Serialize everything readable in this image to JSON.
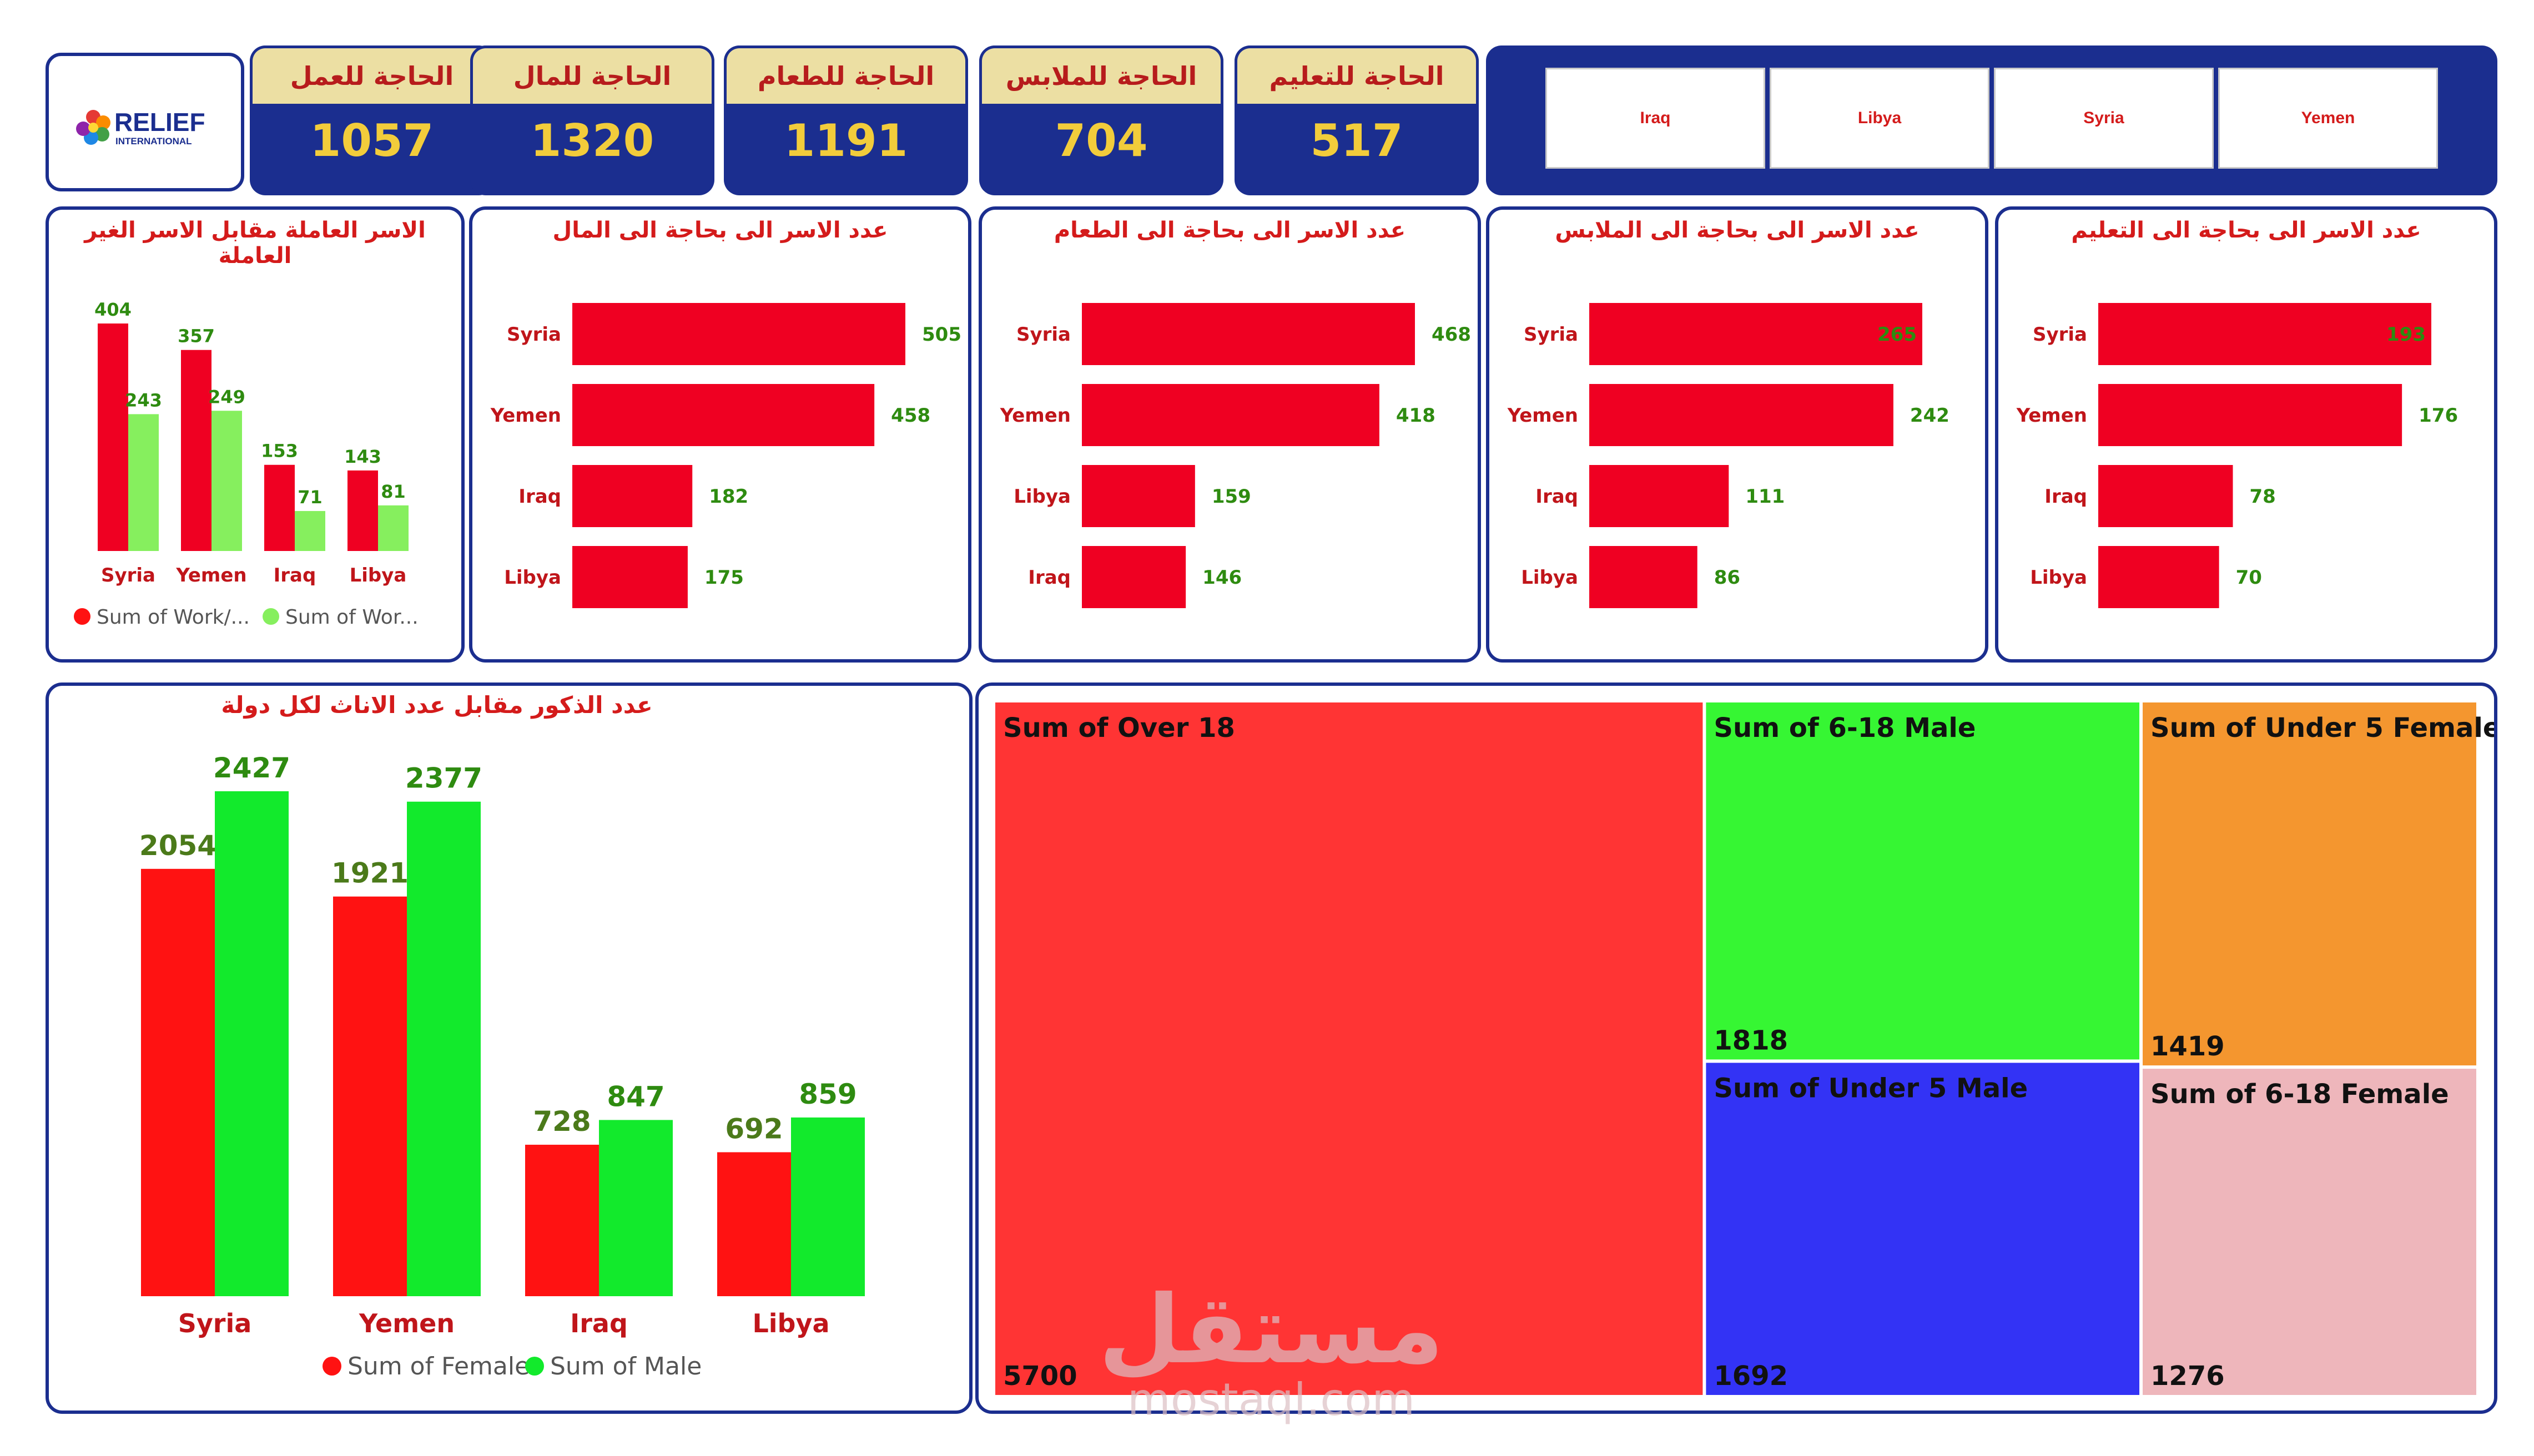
{
  "logo": {
    "name": "RELIEF",
    "sub": "INTERNATIONAL"
  },
  "kpis": [
    {
      "label": "الحاجة للعمل",
      "value": "1057"
    },
    {
      "label": "الحاجة للمال",
      "value": "1320"
    },
    {
      "label": "الحاجة للطعام",
      "value": "1191"
    },
    {
      "label": "الحاجة للملابس",
      "value": "704"
    },
    {
      "label": "الحاجة للتعليم",
      "value": "517"
    }
  ],
  "slicer": {
    "options": [
      "Iraq",
      "Libya",
      "Syria",
      "Yemen"
    ]
  },
  "panels": {
    "work": {
      "title": "الاسر العاملة مقابل الاسر الغير العاملة"
    },
    "money": {
      "title": "عدد الاسر الى بحاجة الى المال"
    },
    "food": {
      "title": "عدد الاسر الى بحاجة الى الطعام"
    },
    "clothes": {
      "title": "عدد الاسر الى بحاجة الى الملابس"
    },
    "education": {
      "title": "عدد الاسر الى بحاجة الى التعليم"
    },
    "gender": {
      "title": "عدد الذكور مقابل عدد الاناث لكل دولة"
    }
  },
  "watermark": {
    "arabic": "مستقل",
    "latin": "mostaql.com"
  },
  "colors": {
    "navy": "#1b2e8f",
    "red": "#ef0022",
    "bright_red": "#ff1212",
    "light_green": "#86ef5e",
    "green": "#12ea2c",
    "label_green": "#2e8b10",
    "kpi_gold": "#f2cc3b",
    "kpi_head": "#ecdfa3"
  },
  "chart_data": [
    {
      "id": "work",
      "type": "bar",
      "categories": [
        "Syria",
        "Yemen",
        "Iraq",
        "Libya"
      ],
      "series": [
        {
          "name": "Sum of Work/...",
          "values": [
            404,
            357,
            153,
            143
          ]
        },
        {
          "name": "Sum of Wor...",
          "values": [
            243,
            249,
            71,
            81
          ]
        }
      ],
      "legend": "bottom-left"
    },
    {
      "id": "money",
      "type": "bar",
      "orientation": "horizontal",
      "categories": [
        "Syria",
        "Yemen",
        "Iraq",
        "Libya"
      ],
      "values": [
        505,
        458,
        182,
        175
      ]
    },
    {
      "id": "food",
      "type": "bar",
      "orientation": "horizontal",
      "categories": [
        "Syria",
        "Yemen",
        "Libya",
        "Iraq"
      ],
      "values": [
        468,
        418,
        159,
        146
      ]
    },
    {
      "id": "clothes",
      "type": "bar",
      "orientation": "horizontal",
      "categories": [
        "Syria",
        "Yemen",
        "Iraq",
        "Libya"
      ],
      "values": [
        265,
        242,
        111,
        86
      ]
    },
    {
      "id": "education",
      "type": "bar",
      "orientation": "horizontal",
      "categories": [
        "Syria",
        "Yemen",
        "Iraq",
        "Libya"
      ],
      "values": [
        193,
        176,
        78,
        70
      ]
    },
    {
      "id": "gender",
      "type": "bar",
      "categories": [
        "Syria",
        "Yemen",
        "Iraq",
        "Libya"
      ],
      "series": [
        {
          "name": "Sum of Female",
          "values": [
            2054,
            1921,
            728,
            692
          ]
        },
        {
          "name": "Sum of Male",
          "values": [
            2427,
            2377,
            847,
            859
          ]
        }
      ],
      "legend": "bottom-center"
    },
    {
      "id": "treemap",
      "type": "treemap",
      "items": [
        {
          "label": "Sum of Over 18",
          "value": 5700,
          "color": "#ff3434"
        },
        {
          "label": "Sum of 6-18 Male",
          "value": 1818,
          "color": "#36f633"
        },
        {
          "label": "Sum of Under 5 Male",
          "value": 1692,
          "color": "#3333f5"
        },
        {
          "label": "Sum of Under 5 Female",
          "value": 1419,
          "color": "#f4962f"
        },
        {
          "label": "Sum of 6-18 Female",
          "value": 1276,
          "color": "#eeb6bb"
        }
      ]
    }
  ]
}
